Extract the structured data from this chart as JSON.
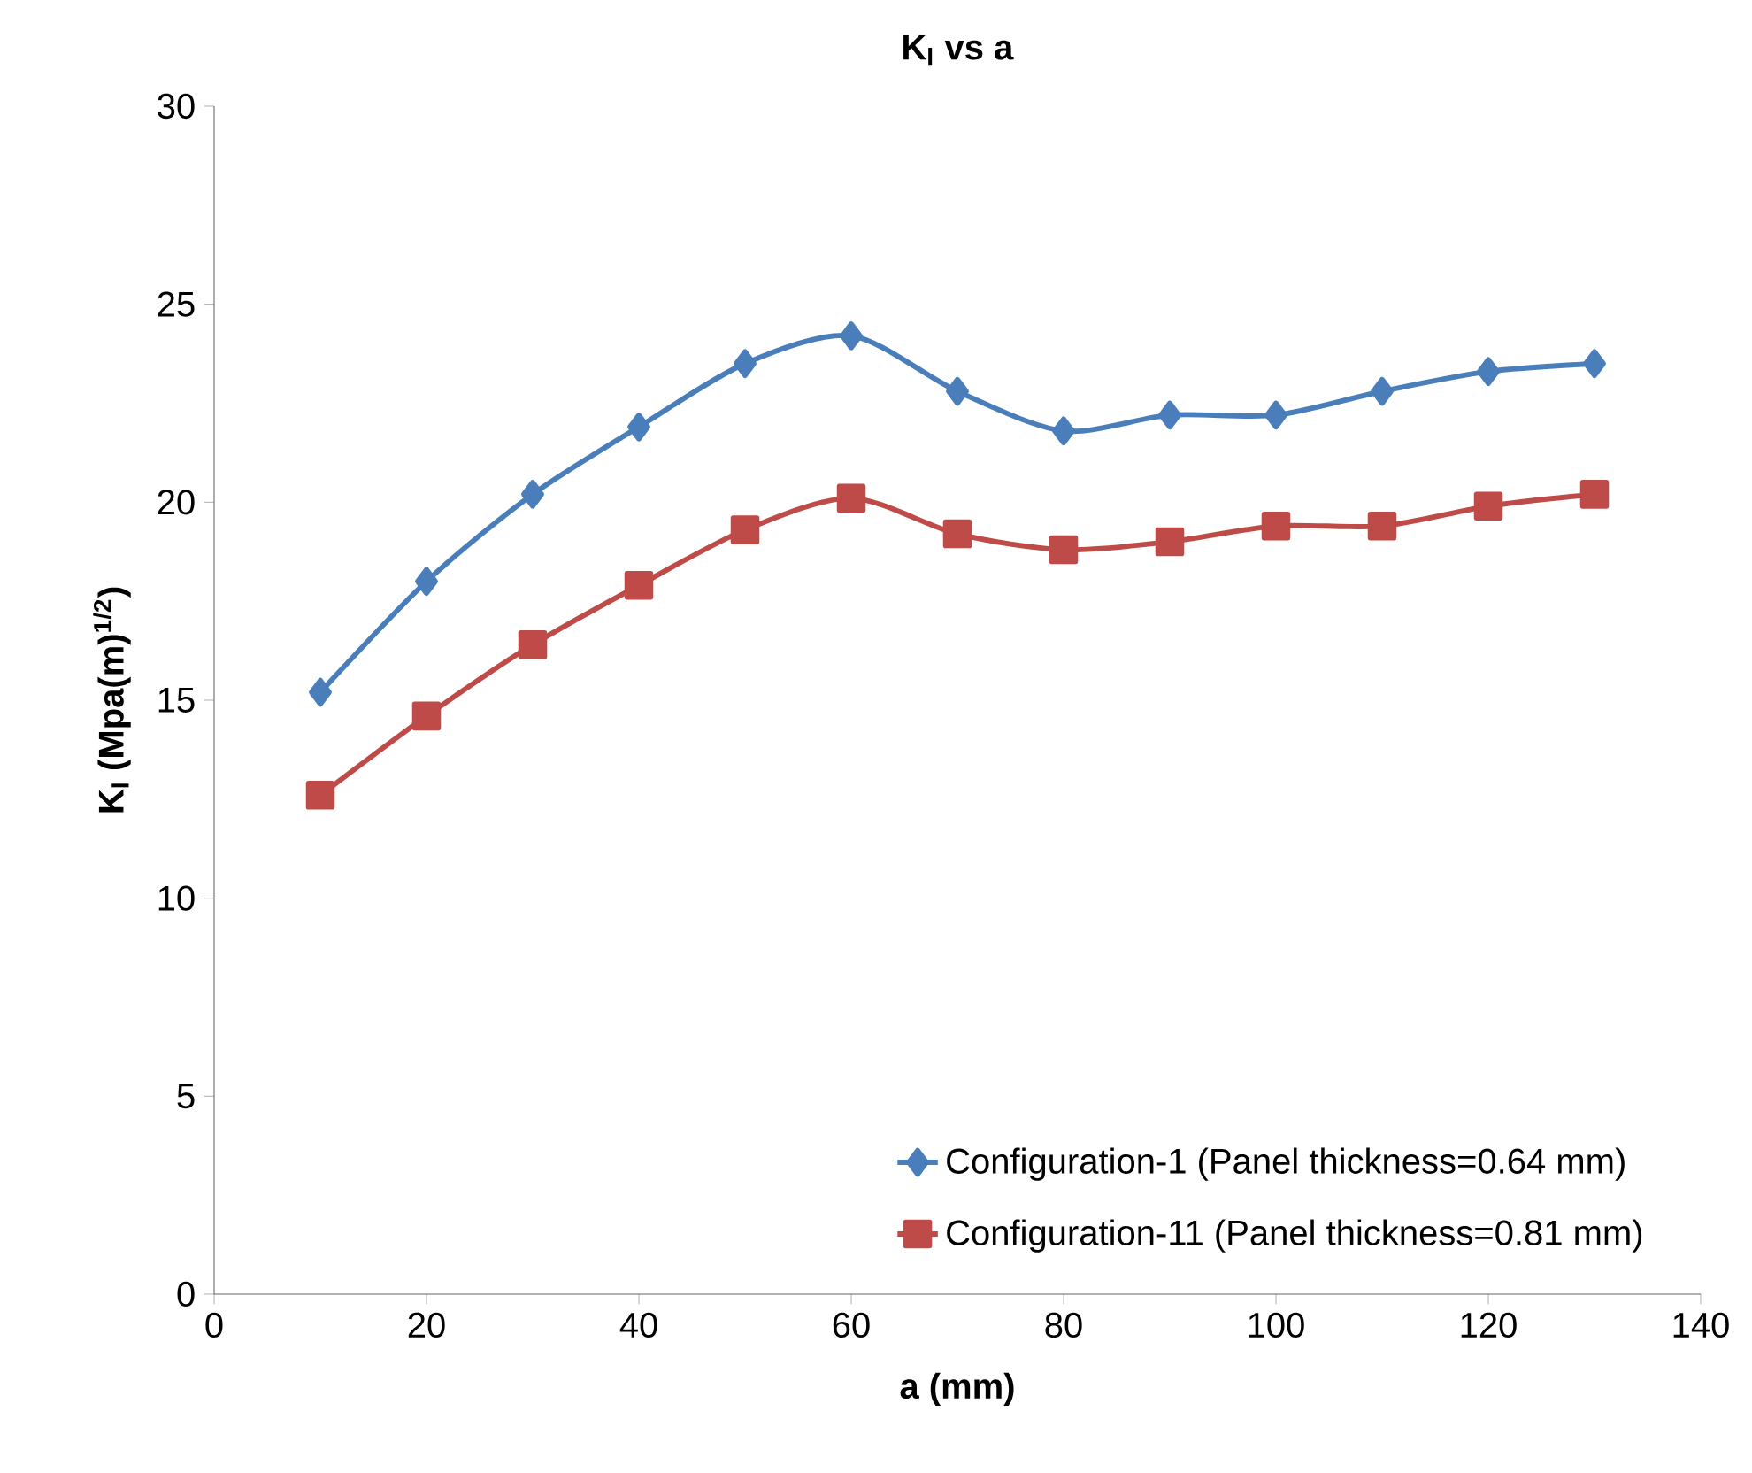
{
  "chart_data": {
    "type": "line",
    "title": "**K$_{I}$ vs a**",
    "xlabel": "**a (mm)**",
    "ylabel": "**K$_{I}$ (Mpa(m)$^{1/2}$)**",
    "x": [
      10,
      20,
      30,
      40,
      50,
      60,
      70,
      80,
      90,
      100,
      110,
      120,
      130
    ],
    "series": [
      {
        "name": "Configuration-1 (Panel thickness=0.64 mm)",
        "color": "#4a7ebb",
        "marker": "diamond",
        "values": [
          15.2,
          18.0,
          20.2,
          21.9,
          23.5,
          24.2,
          22.8,
          21.8,
          22.2,
          22.2,
          22.8,
          23.3,
          23.5
        ]
      },
      {
        "name": "Configuration-11 (Panel thickness=0.81 mm)",
        "color": "#be4b48",
        "marker": "square",
        "values": [
          12.6,
          14.6,
          16.4,
          17.9,
          19.3,
          20.1,
          19.2,
          18.8,
          19.0,
          19.4,
          19.4,
          19.9,
          20.2
        ]
      }
    ],
    "xlim": [
      0,
      140
    ],
    "xticks": [
      0,
      20,
      40,
      60,
      80,
      100,
      120,
      140
    ],
    "ylim": [
      0,
      30
    ],
    "yticks": [
      0,
      5,
      10,
      15,
      20,
      25,
      30
    ],
    "legend": "bottom right",
    "line_style": "solid"
  }
}
